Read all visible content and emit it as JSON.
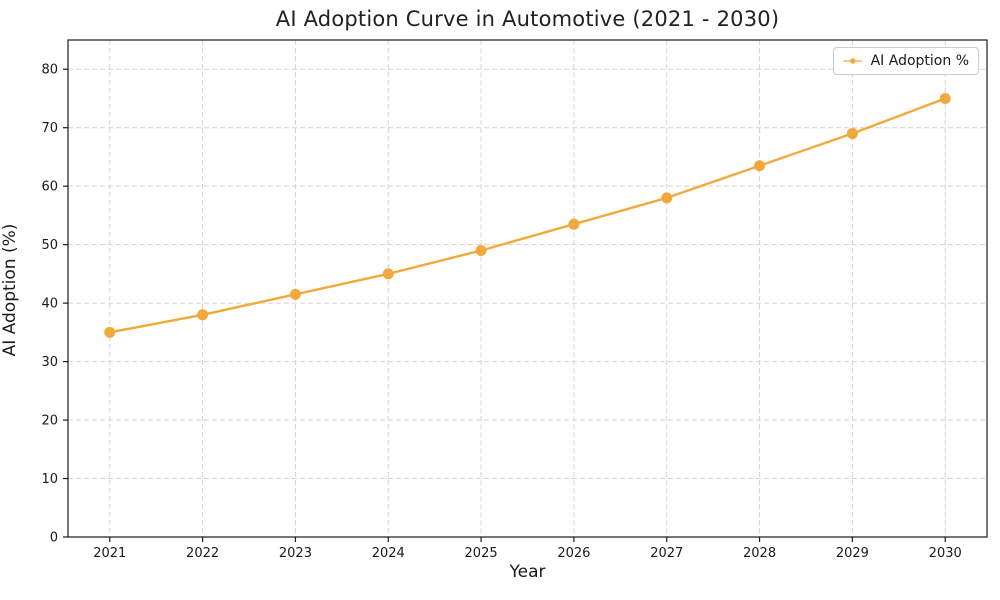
{
  "chart_data": {
    "type": "line",
    "title": "AI Adoption Curve in Automotive (2021 - 2030)",
    "xlabel": "Year",
    "ylabel": "AI Adoption (%)",
    "categories": [
      "2021",
      "2022",
      "2023",
      "2024",
      "2025",
      "2026",
      "2027",
      "2028",
      "2029",
      "2030"
    ],
    "series": [
      {
        "name": "AI Adoption %",
        "values": [
          35,
          38,
          41.5,
          45,
          49,
          53.5,
          58,
          63.5,
          69,
          75
        ],
        "color": "#F2A93B",
        "marker": "circle"
      }
    ],
    "ylim": [
      0,
      85
    ],
    "yticks": [
      0,
      10,
      20,
      30,
      40,
      50,
      60,
      70,
      80
    ],
    "grid": true,
    "grid_style": "dashed",
    "grid_color": "#d2d2d2",
    "axis_color": "#1a1a1a",
    "legend": {
      "position": "top-right",
      "entries": [
        "AI Adoption %"
      ]
    }
  }
}
